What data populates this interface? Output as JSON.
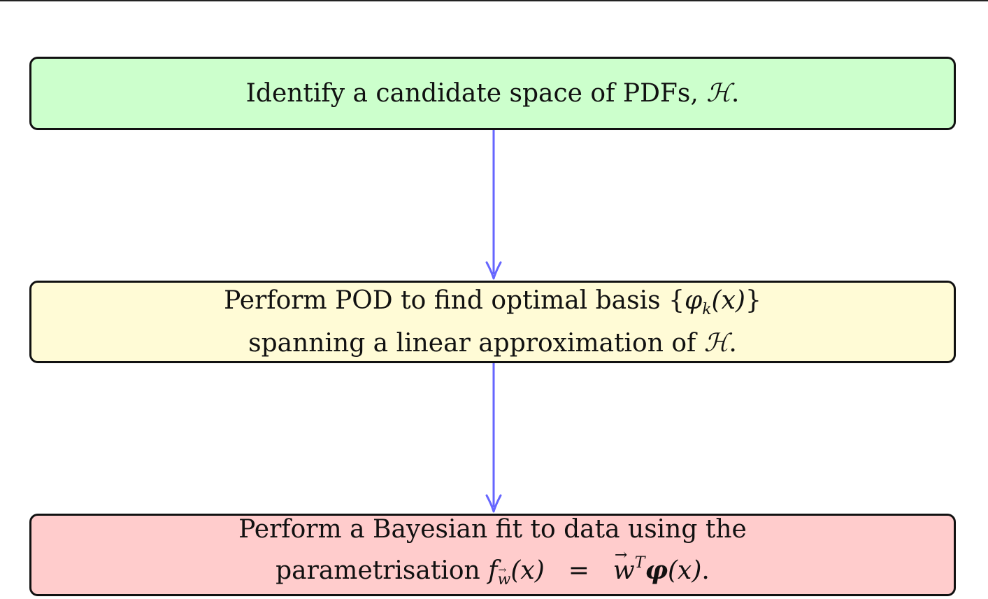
{
  "diagram": {
    "colors": {
      "step1_fill": "#ccffcc",
      "step2_fill": "#fffbd6",
      "step3_fill": "#ffcccc",
      "arrow": "#6666ff",
      "border": "#111111"
    },
    "step1": {
      "text": "Identify a candidate space of PDFs,",
      "symbol": "ℋ",
      "end": "."
    },
    "step2": {
      "line1_text": "Perform POD to find optimal basis",
      "line1_math_open": "{",
      "line1_phi": "φ",
      "line1_sub": "k",
      "line1_arg": "(x)",
      "line1_math_close": "}",
      "line2_text": "spanning a linear approximation of",
      "line2_symbol": "ℋ",
      "line2_end": "."
    },
    "step3": {
      "line1_text": "Perform a Bayesian fit to data using the",
      "line2_text": "parametrisation",
      "f": "f",
      "sub_w": "w",
      "f_arg": "(x)",
      "equals": "=",
      "w": "w",
      "sup_T": "T",
      "phi": "φ",
      "phi_arg": "(x)",
      "end": "."
    }
  }
}
